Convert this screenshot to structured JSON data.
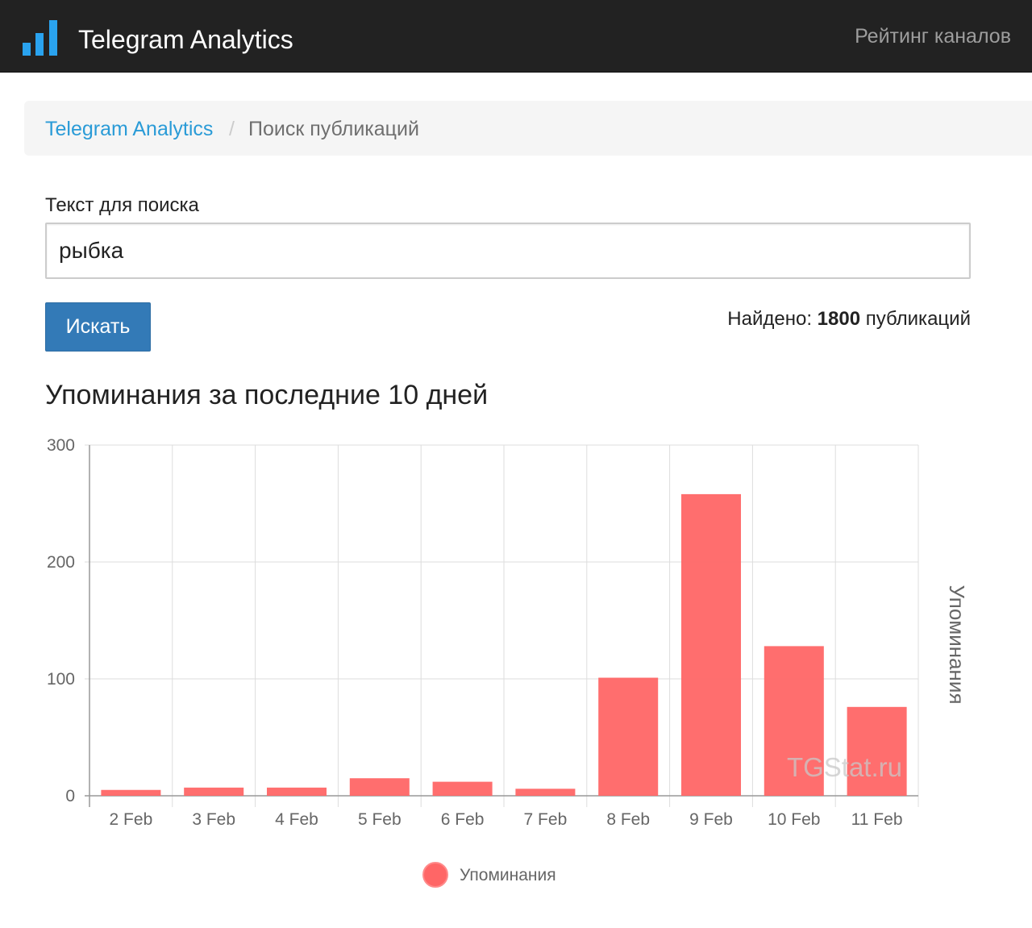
{
  "navbar": {
    "brand": "Telegram Analytics",
    "nav_link": "Рейтинг каналов",
    "logo_icon": "bar-chart-icon",
    "logo_color": "#2aa3ef"
  },
  "breadcrumb": {
    "home": "Telegram Analytics",
    "separator": "/",
    "current": "Поиск публикаций"
  },
  "search": {
    "label": "Текст для поиска",
    "value": "рыбка",
    "button": "Искать"
  },
  "results": {
    "prefix": "Найдено: ",
    "count": "1800",
    "suffix": " публикаций"
  },
  "chart_title": "Упоминания за последние 10 дней",
  "chart_data": {
    "type": "bar",
    "categories": [
      "2 Feb",
      "3 Feb",
      "4 Feb",
      "5 Feb",
      "6 Feb",
      "7 Feb",
      "8 Feb",
      "9 Feb",
      "10 Feb",
      "11 Feb"
    ],
    "series": [
      {
        "name": "Упоминания",
        "values": [
          5,
          7,
          7,
          15,
          12,
          6,
          101,
          258,
          128,
          76
        ],
        "color": "#ff6666"
      }
    ],
    "ylim": [
      0,
      300
    ],
    "yticks": [
      0,
      100,
      200,
      300
    ],
    "ylabel": "Упоминания",
    "ylabel_side": "right",
    "grid": true,
    "legend": "bottom-center",
    "watermark": "TGStat.ru"
  }
}
